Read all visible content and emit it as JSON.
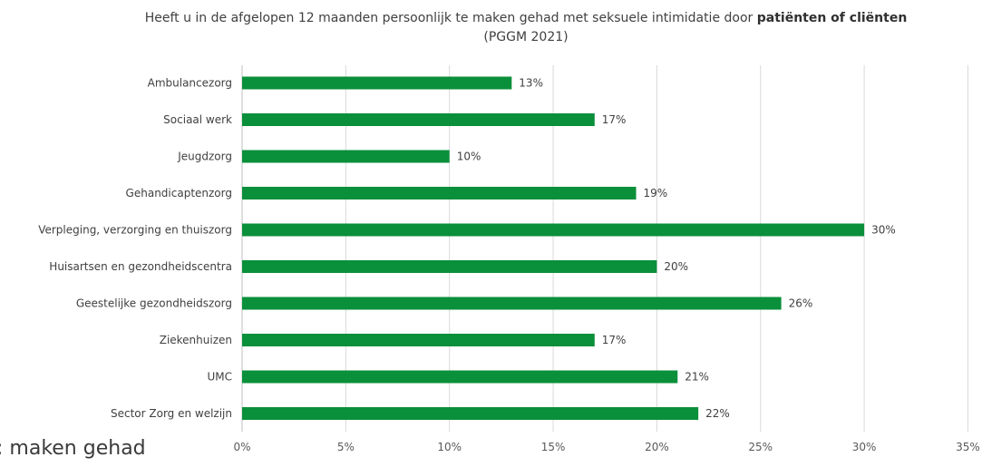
{
  "chart_data": {
    "type": "bar",
    "orientation": "horizontal",
    "title": "Heeft u in de afgelopen 12 maanden persoonlijk te maken gehad met seksuele intimidatie door",
    "title_bold": "patiënten of cliënten",
    "subtitle": "(PGGM 2021)",
    "categories": [
      "Ambulancezorg",
      "Sociaal werk",
      "Jeugdzorg",
      "Gehandicaptenzorg",
      "Verpleging, verzorging en thuiszorg",
      "Huisartsen en gezondheidscentra",
      "Geestelijke gezondheidszorg",
      "Ziekenhuizen",
      "UMC",
      "Sector Zorg en welzijn"
    ],
    "values": [
      13,
      17,
      10,
      19,
      30,
      20,
      26,
      17,
      21,
      22
    ],
    "value_labels": [
      "13%",
      "17%",
      "10%",
      "19%",
      "30%",
      "20%",
      "26%",
      "17%",
      "21%",
      "22%"
    ],
    "xlim": [
      0,
      35
    ],
    "x_ticks": [
      "0%",
      "5%",
      "10%",
      "15%",
      "20%",
      "25%",
      "30%",
      "35%"
    ],
    "grid": "vertical",
    "legend": "none",
    "bar_color": "#0a8f3a"
  },
  "overlay_text": "maken gehad"
}
